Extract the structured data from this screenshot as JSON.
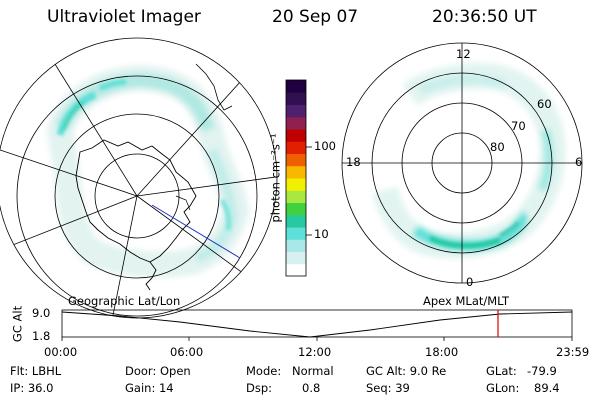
{
  "header": {
    "title": "Ultraviolet Imager",
    "date": "20 Sep 07",
    "time": "20:36:50 UT"
  },
  "colorbar": {
    "unit": "photon cm⁻²s⁻¹",
    "ticks": [
      "100",
      "10"
    ],
    "colors": [
      "#ffffff",
      "#d8f0f0",
      "#a8e8e8",
      "#5ee0d8",
      "#28c8a0",
      "#40d040",
      "#a8e840",
      "#f0f000",
      "#f8b800",
      "#f06000",
      "#e02000",
      "#c00000",
      "#902050",
      "#502070",
      "#301050",
      "#200040"
    ]
  },
  "geo_plot": {},
  "mlat_plot": {
    "mlt_labels": [
      "12",
      "18",
      "6",
      "0"
    ],
    "lat_labels": [
      "60",
      "70",
      "80"
    ]
  },
  "timeline": {
    "left_label": "Geographic Lat/Lon",
    "right_label": "Apex MLat/MLT",
    "axis_title": "GC Alt",
    "y_ticks": [
      "9.0",
      "1.8"
    ],
    "x_ticks": [
      "00:00",
      "06:00",
      "12:00",
      "18:00",
      "23:59"
    ],
    "marker_color": "#e00000"
  },
  "info": {
    "flt": "Flt: LBHL",
    "ip": "IP: 36.0",
    "door": "Door: Open",
    "gain": "Gain: 14",
    "mode_label": "Mode:",
    "mode_value": "Normal",
    "dsp_label": "Dsp:",
    "dsp_value": "0.8",
    "gcalt": "GC Alt: 9.0 Re",
    "seq": "Seq: 39",
    "glat_label": "GLat:",
    "glat_value": "-79.9",
    "glon_label": "GLon:",
    "glon_value": "89.4"
  }
}
